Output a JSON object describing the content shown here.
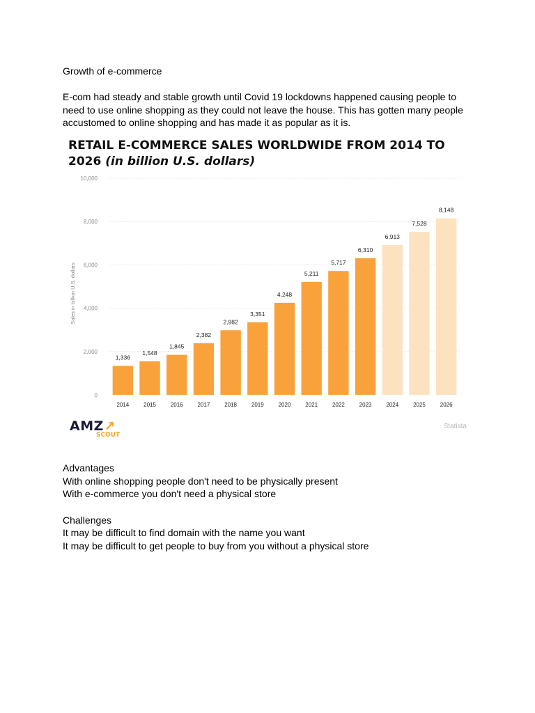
{
  "doc": {
    "heading": "Growth of e-commerce",
    "intro_lines": [
      "E-com had steady and stable growth until Covid 19 lockdowns happened causing people to",
      "need to use online shopping as they could not leave the house. This has gotten many people",
      "accustomed to online shopping and has made it as popular as it is."
    ],
    "advantages_heading": "Advantages",
    "advantages": [
      "With online shopping people don't need to be physically present",
      "With e-commerce you don't need a physical store"
    ],
    "challenges_heading": "Challenges",
    "challenges": [
      "It may be difficult to find domain with the name you want",
      "It may be difficult to get people to buy from you without a physical store"
    ]
  },
  "figure": {
    "logo_text": "AMZ",
    "logo_subtext": "SCOUT",
    "source": "Statista"
  },
  "chart_data": {
    "type": "bar",
    "title_line1": "RETAIL E-COMMERCE SALES WORLDWIDE FROM 2014 TO",
    "title_line2_main": "2026",
    "title_line2_italic": "(in billion U.S. dollars)",
    "ylabel": "Sales in billion U.S. dollars",
    "xlabel": "",
    "ylim": [
      0,
      10000
    ],
    "yticks": [
      0,
      2000,
      4000,
      6000,
      8000,
      10000
    ],
    "ytick_labels": [
      "0",
      "2,000",
      "4,000",
      "6,000",
      "8,000",
      "10,000"
    ],
    "categories": [
      "2014",
      "2015",
      "2016",
      "2017",
      "2018",
      "2019",
      "2020",
      "2021",
      "2022",
      "2023",
      "2024",
      "2025",
      "2026"
    ],
    "values": [
      1336,
      1548,
      1845,
      2382,
      2982,
      3351,
      4248,
      5211,
      5717,
      6310,
      6913,
      7528,
      8148
    ],
    "value_labels": [
      "1,336",
      "1,548",
      "1,845",
      "2,382",
      "2,982",
      "3,351",
      "4,248",
      "5,211",
      "5,717",
      "6,310",
      "6,913",
      "7,528",
      "8,148"
    ],
    "forecast_from": "2024",
    "colors": {
      "actual": "#f9a23c",
      "forecast": "#fde2c0",
      "grid": "#e6e6e6",
      "text": "#222222",
      "axis_text": "#888888"
    },
    "grid": true
  }
}
